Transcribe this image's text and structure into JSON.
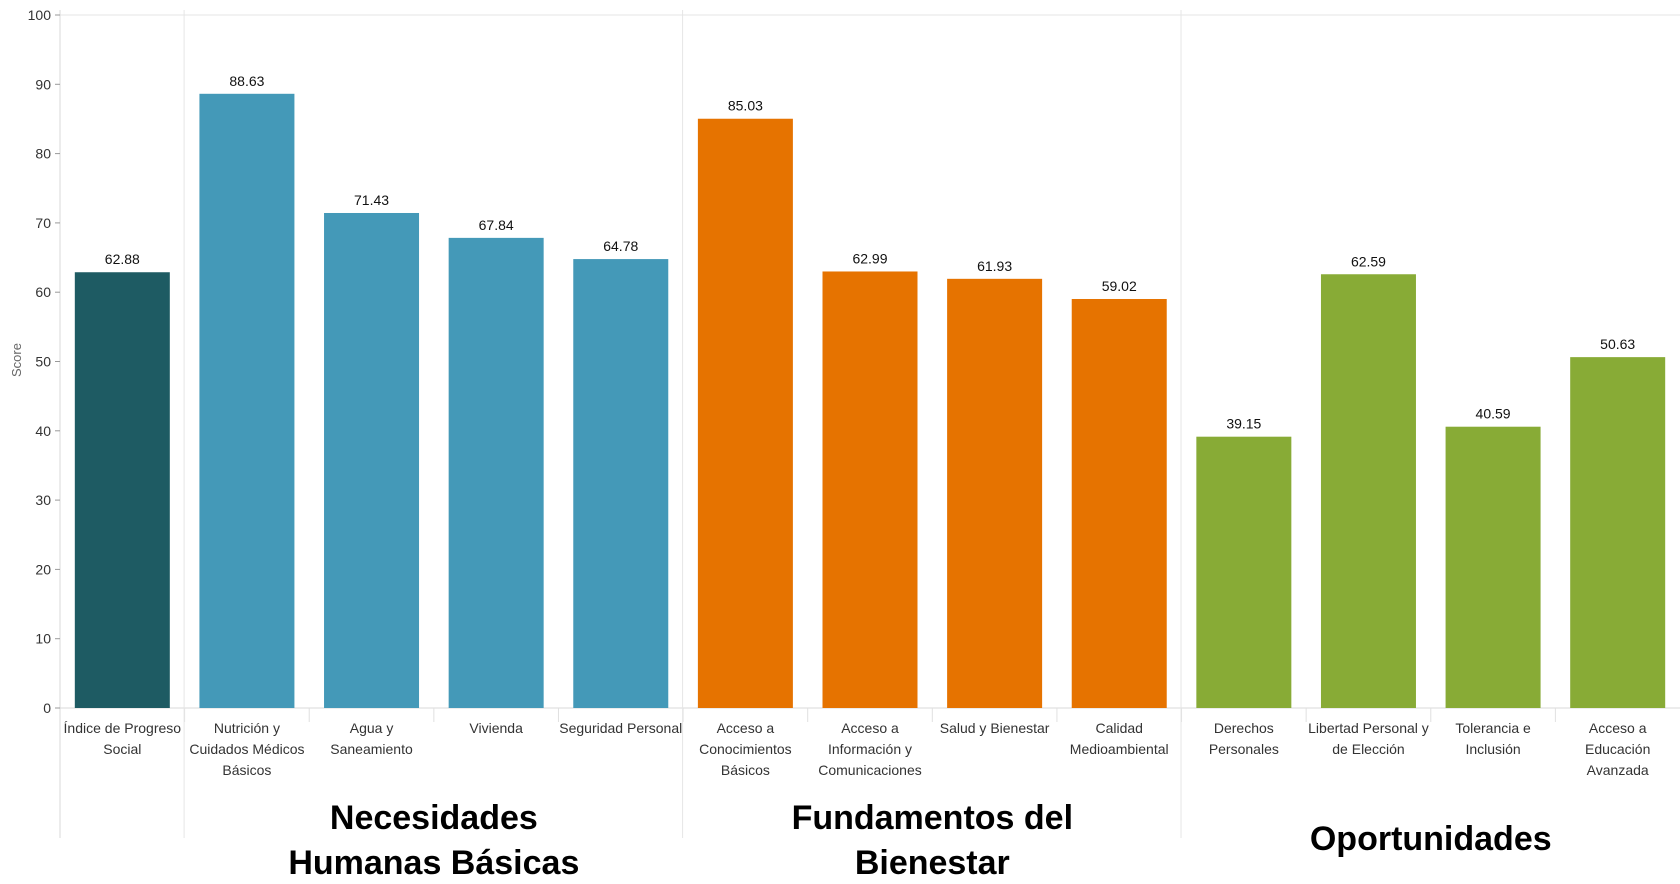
{
  "chart_data": {
    "type": "bar",
    "ylabel": "Score",
    "ylim": [
      0,
      100
    ],
    "yticks": [
      0,
      10,
      20,
      30,
      40,
      50,
      60,
      70,
      80,
      90,
      100
    ],
    "grid": false,
    "categories": [
      [
        "Índice de Progreso",
        "Social"
      ],
      [
        "Nutrición y",
        "Cuidados Médicos",
        "Básicos"
      ],
      [
        "Agua y",
        "Saneamiento"
      ],
      [
        "Vivienda"
      ],
      [
        "Seguridad Personal"
      ],
      [
        "Acceso a",
        "Conocimientos",
        "Básicos"
      ],
      [
        "Acceso a",
        "Información y",
        "Comunicaciones"
      ],
      [
        "Salud y Bienestar"
      ],
      [
        "Calidad",
        "Medioambiental"
      ],
      [
        "Derechos",
        "Personales"
      ],
      [
        "Libertad Personal y",
        "de Elección"
      ],
      [
        "Tolerancia e",
        "Inclusión"
      ],
      [
        "Acceso a",
        "Educación",
        "Avanzada"
      ]
    ],
    "values": [
      62.88,
      88.63,
      71.43,
      67.84,
      64.78,
      85.03,
      62.99,
      61.93,
      59.02,
      39.15,
      62.59,
      40.59,
      50.63
    ],
    "value_labels": [
      "62.88",
      "88.63",
      "71.43",
      "67.84",
      "64.78",
      "85.03",
      "62.99",
      "61.93",
      "59.02",
      "39.15",
      "62.59",
      "40.59",
      "50.63"
    ],
    "bar_colors": [
      "#1e5b63",
      "#4499b8",
      "#4499b8",
      "#4499b8",
      "#4499b8",
      "#e67300",
      "#e67300",
      "#e67300",
      "#e67300",
      "#88ab36",
      "#88ab36",
      "#88ab36",
      "#88ab36"
    ],
    "groups": [
      {
        "name": [
          "Necesidades",
          "Humanas Básicas"
        ],
        "from": 1,
        "to": 4
      },
      {
        "name": [
          "Fundamentos del",
          "Bienestar"
        ],
        "from": 5,
        "to": 8
      },
      {
        "name": [
          "Oportunidades"
        ],
        "from": 9,
        "to": 12
      }
    ]
  }
}
